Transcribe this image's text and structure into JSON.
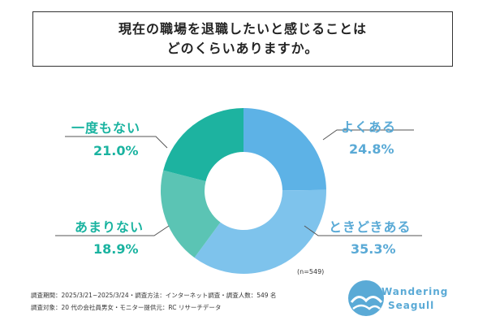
{
  "title_lines": [
    "現在の職場を退職したいと感じることは",
    "どのくらいありますか。"
  ],
  "n_note": "(n=549)",
  "footer": {
    "line1": "調査期間：2025/3/21~2025/3/24・調査方法：インターネット調査・調査人数：549 名",
    "line2": "調査対象：20 代の会社員男女・モニター提供元：RC リサーチデータ"
  },
  "logo": {
    "line1": "Wandering",
    "line2": "Seagull"
  },
  "colors": {
    "accent_blue": "#5aaad6",
    "accent_teal": "#1ab3a0"
  },
  "chart_data": {
    "type": "pie",
    "donut": true,
    "slices": [
      {
        "label": "よくある",
        "value": 24.8,
        "display": "24.8%",
        "color": "#5db2e6"
      },
      {
        "label": "ときどきある",
        "value": 35.3,
        "display": "35.3%",
        "color": "#7ec3ec"
      },
      {
        "label": "あまりない",
        "value": 18.9,
        "display": "18.9%",
        "color": "#5bc4b4"
      },
      {
        "label": "一度もない",
        "value": 21.0,
        "display": "21.0%",
        "color": "#1db3a0"
      }
    ]
  }
}
